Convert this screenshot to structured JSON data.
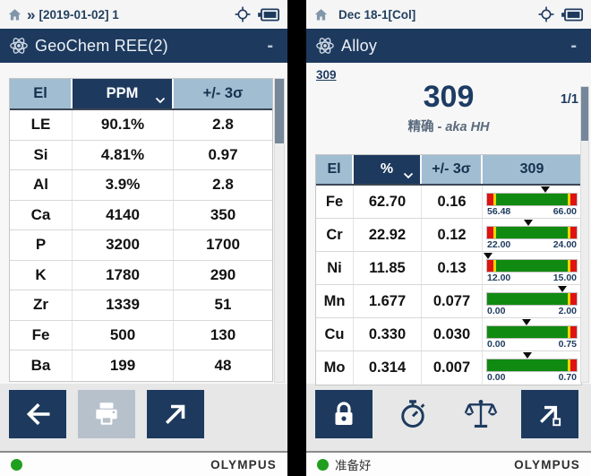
{
  "colors": {
    "navy": "#1d3a5e",
    "header_blue": "#a1bdd1",
    "bar_green": "#118a11",
    "bar_red": "#e01212",
    "bar_yellow": "#f2d400",
    "status_green": "#1f9e1f",
    "disabled_button": "#b7c1cb"
  },
  "left_screen": {
    "status_bar": {
      "chevrons": "»",
      "label": "[2019-01-02] 1"
    },
    "title_bar": {
      "title": "GeoChem REE(2)",
      "minimize_label": "-"
    },
    "table": {
      "headers": [
        "El",
        "PPM",
        "+/- 3σ"
      ],
      "sort_column": "PPM",
      "rows": [
        [
          "LE",
          "90.1%",
          "2.8"
        ],
        [
          "Si",
          "4.81%",
          "0.97"
        ],
        [
          "Al",
          "3.9%",
          "2.8"
        ],
        [
          "Ca",
          "4140",
          "350"
        ],
        [
          "P",
          "3200",
          "1700"
        ],
        [
          "K",
          "1780",
          "290"
        ],
        [
          "Zr",
          "1339",
          "51"
        ],
        [
          "Fe",
          "500",
          "130"
        ],
        [
          "Ba",
          "199",
          "48"
        ]
      ]
    },
    "footer": {
      "brand": "OLYMPUS"
    }
  },
  "right_screen": {
    "status_bar": {
      "label": "Dec 18-1[Col]"
    },
    "title_bar": {
      "title": "Alloy",
      "minimize_label": "-"
    },
    "result": {
      "grade_link": "309",
      "grade": "309",
      "page": "1/1",
      "subtitle_prefix": "精确 - ",
      "subtitle_italic": "aka HH"
    },
    "table": {
      "headers": [
        "El",
        "%",
        "+/- 3σ",
        "309"
      ],
      "sort_column": "%",
      "rows": [
        {
          "el": "Fe",
          "value": "62.70",
          "sigma": "0.16",
          "min": "56.48",
          "max": "66.00",
          "marker": 0.65,
          "bands": [
            [
              "red",
              7
            ],
            [
              "yellow",
              3
            ],
            [
              "green",
              80
            ],
            [
              "yellow",
              3
            ],
            [
              "red",
              7
            ]
          ]
        },
        {
          "el": "Cr",
          "value": "22.92",
          "sigma": "0.12",
          "min": "22.00",
          "max": "24.00",
          "marker": 0.46,
          "bands": [
            [
              "red",
              7
            ],
            [
              "yellow",
              3
            ],
            [
              "green",
              80
            ],
            [
              "yellow",
              3
            ],
            [
              "red",
              7
            ]
          ]
        },
        {
          "el": "Ni",
          "value": "11.85",
          "sigma": "0.13",
          "min": "12.00",
          "max": "15.00",
          "marker": 0.01,
          "bands": [
            [
              "red",
              7
            ],
            [
              "yellow",
              3
            ],
            [
              "green",
              80
            ],
            [
              "yellow",
              3
            ],
            [
              "red",
              7
            ]
          ]
        },
        {
          "el": "Mn",
          "value": "1.677",
          "sigma": "0.077",
          "min": "0.00",
          "max": "2.00",
          "marker": 0.84,
          "bands": [
            [
              "green",
              90
            ],
            [
              "yellow",
              3
            ],
            [
              "red",
              7
            ]
          ]
        },
        {
          "el": "Cu",
          "value": "0.330",
          "sigma": "0.030",
          "min": "0.00",
          "max": "0.75",
          "marker": 0.44,
          "bands": [
            [
              "green",
              90
            ],
            [
              "yellow",
              3
            ],
            [
              "red",
              7
            ]
          ]
        },
        {
          "el": "Mo",
          "value": "0.314",
          "sigma": "0.007",
          "min": "0.00",
          "max": "0.70",
          "marker": 0.45,
          "bands": [
            [
              "green",
              90
            ],
            [
              "yellow",
              3
            ],
            [
              "red",
              7
            ]
          ]
        }
      ]
    },
    "footer": {
      "status": "准备好",
      "brand": "OLYMPUS"
    }
  }
}
